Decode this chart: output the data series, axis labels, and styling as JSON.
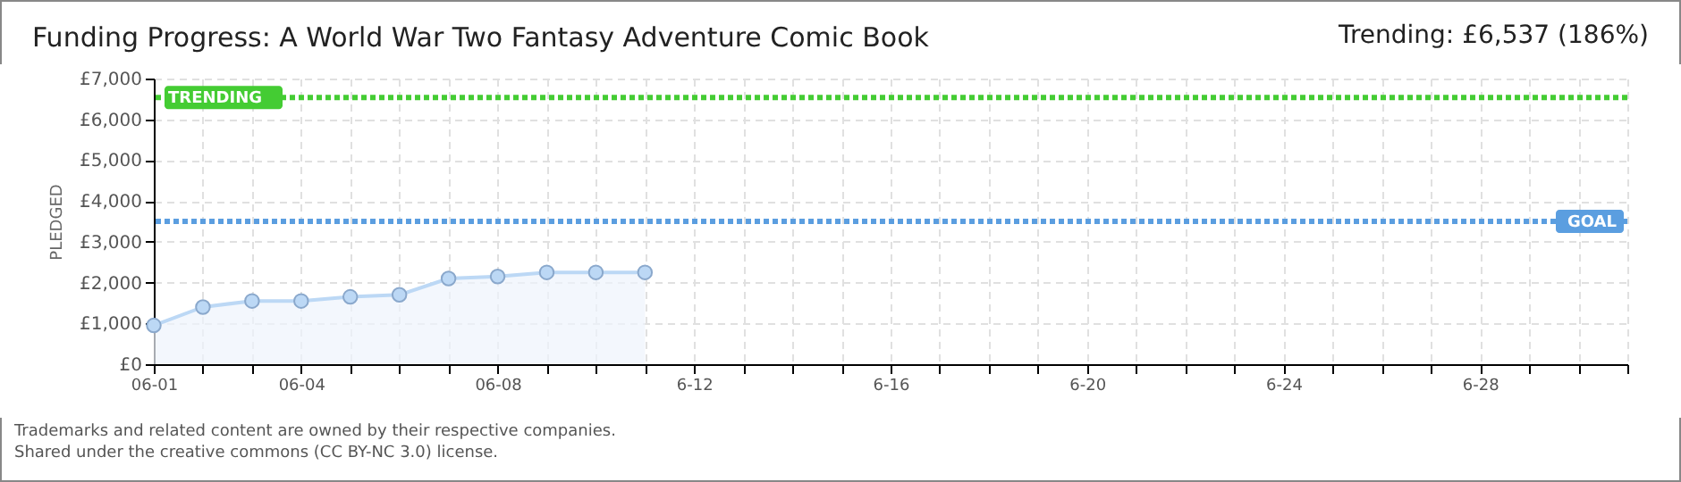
{
  "chart_data": {
    "type": "area",
    "title": "Funding Progress: A World War Two Fantasy Adventure Comic Book",
    "subtitle": "Trending:  £6,537 (186%)",
    "ylabel": "PLEDGED",
    "categories": [
      "06-01",
      null,
      null,
      "06-04",
      null,
      null,
      null,
      "06-08",
      null,
      null,
      null,
      "6-12",
      null,
      null,
      null,
      "6-16",
      null,
      null,
      null,
      "6-20",
      null,
      null,
      null,
      "6-24",
      null,
      null,
      null,
      "6-28",
      null,
      null,
      null
    ],
    "values": [
      950,
      1400,
      1550,
      1550,
      1650,
      1700,
      2100,
      2150,
      2250,
      2250,
      2250,
      null,
      null,
      null,
      null,
      null,
      null,
      null,
      null,
      null,
      null,
      null,
      null,
      null,
      null,
      null,
      null,
      null,
      null,
      null,
      null
    ],
    "color": "#bcd8f5",
    "marker": "circle",
    "grid": true,
    "ylim": [
      0,
      7000
    ],
    "yticks": [
      {
        "value": 0,
        "label": "£0"
      },
      {
        "value": 1000,
        "label": "£1,000"
      },
      {
        "value": 2000,
        "label": "£2,000"
      },
      {
        "value": 3000,
        "label": "£3,000"
      },
      {
        "value": 4000,
        "label": "£4,000"
      },
      {
        "value": 5000,
        "label": "£5,000"
      },
      {
        "value": 6000,
        "label": "£6,000"
      },
      {
        "value": 7000,
        "label": "£7,000"
      }
    ],
    "ref_lines": [
      {
        "axis": "y",
        "value": 6537,
        "label": "TRENDING",
        "color": "#44cc33",
        "line_style": "dotted"
      },
      {
        "axis": "y",
        "value": 3500,
        "label": "GOAL",
        "color": "#5b9ee0",
        "line_style": "dotted"
      }
    ],
    "annotations": [
      "Trademarks and related content are owned by their respective companies.",
      "Shared under the creative commons (CC BY-NC 3.0) license."
    ]
  }
}
